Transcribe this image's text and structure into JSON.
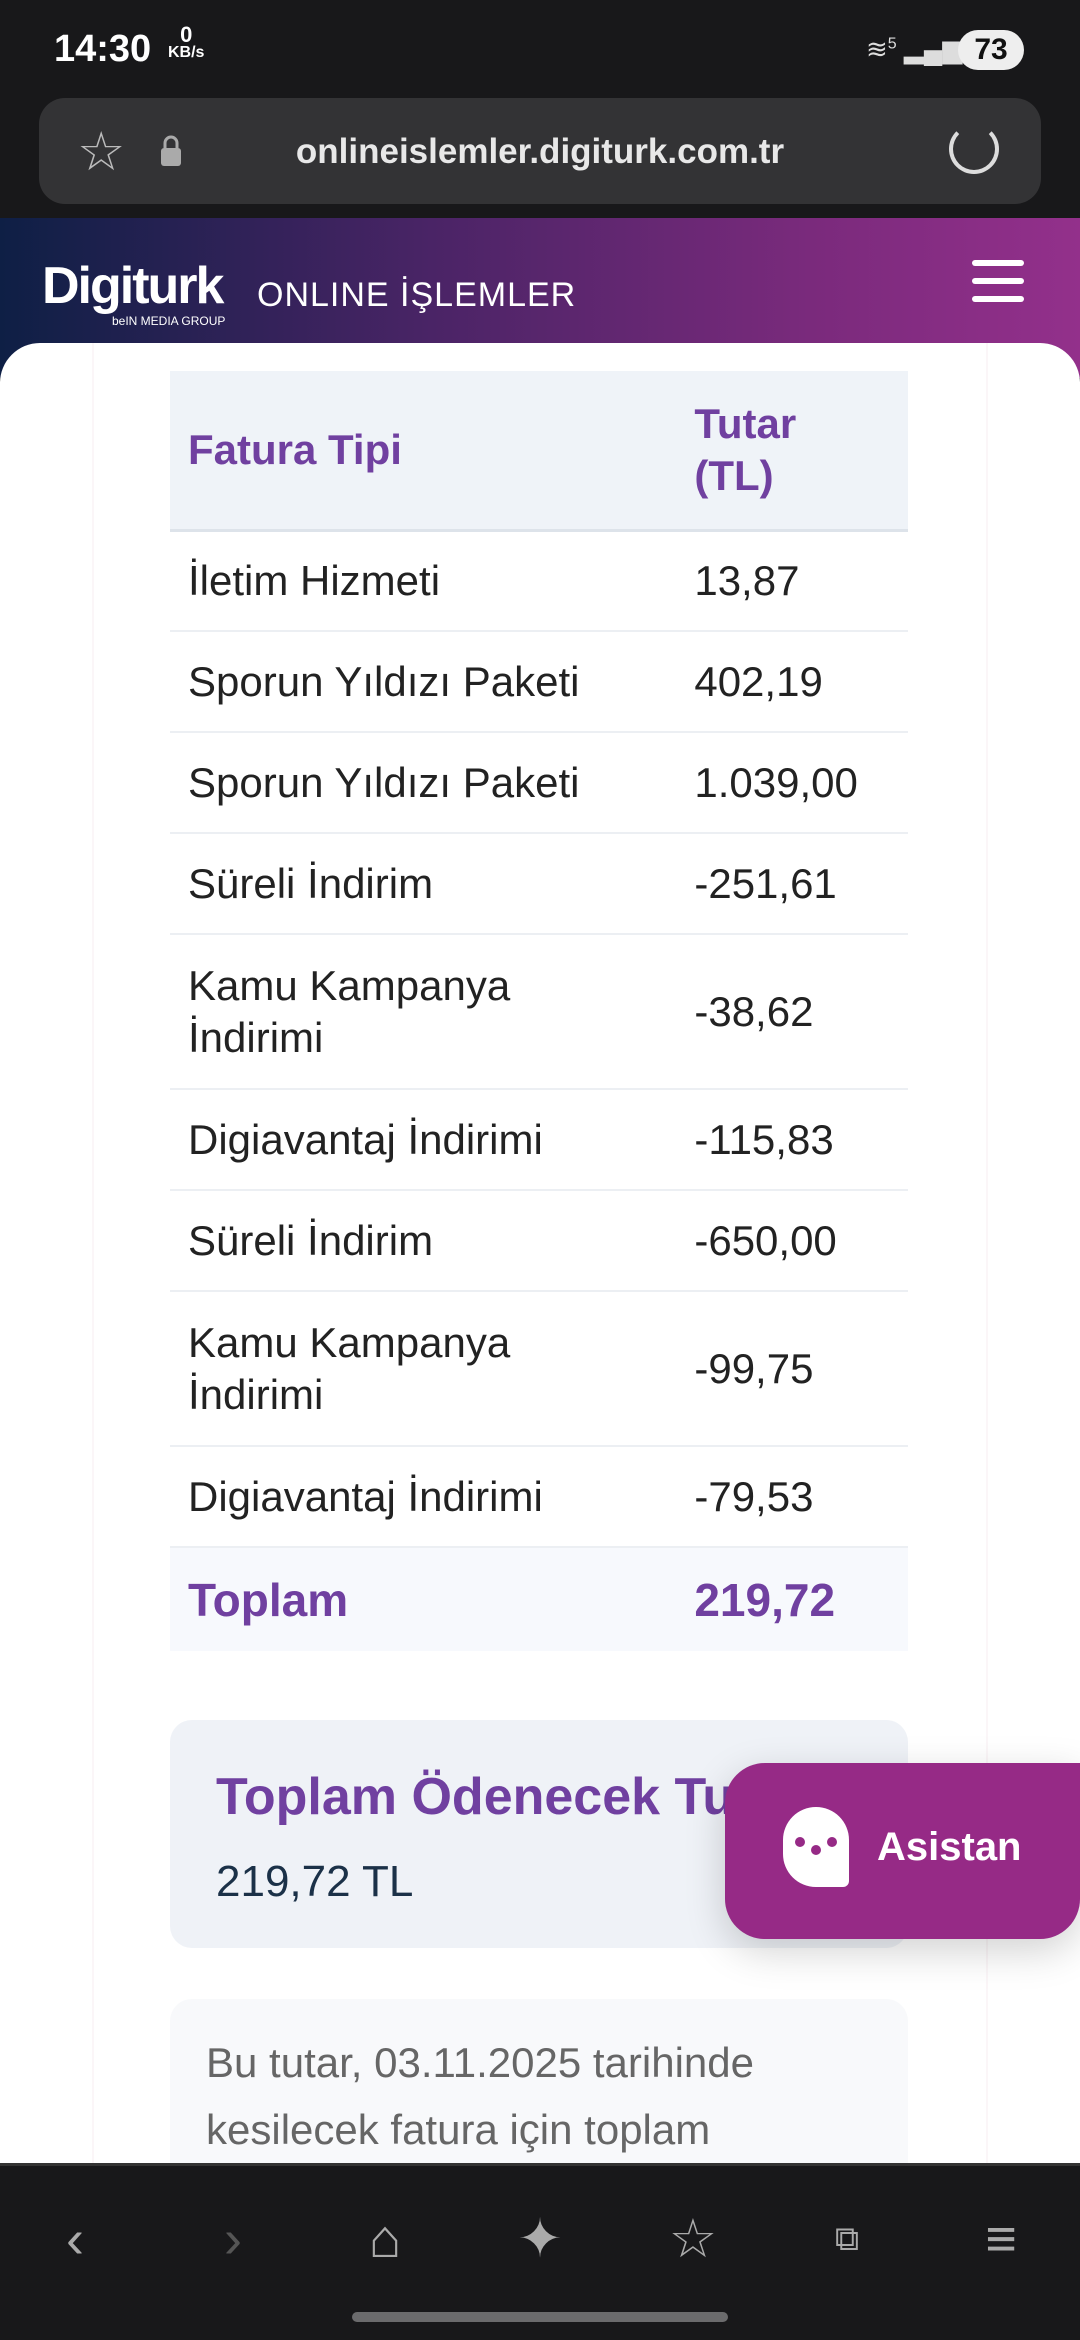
{
  "status_bar": {
    "time": "14:30",
    "net_speed_value": "0",
    "net_speed_unit": "KB/s",
    "network": "5",
    "battery": "73"
  },
  "browser": {
    "url": "onlineislemler.digiturk.com.tr"
  },
  "header": {
    "logo": "Digiturk",
    "logo_sub": "beIN MEDIA GROUP",
    "title": "ONLINE İŞLEMLER"
  },
  "table": {
    "headers": [
      "Fatura Tipi",
      "Tutar (TL)"
    ],
    "rows": [
      {
        "type": "İletim Hizmeti",
        "amount": "13,87"
      },
      {
        "type": "Sporun Yıldızı Paketi",
        "amount": "402,19"
      },
      {
        "type": "Sporun Yıldızı Paketi",
        "amount": "1.039,00"
      },
      {
        "type": "Süreli İndirim",
        "amount": "-251,61"
      },
      {
        "type": "Kamu Kampanya İndirimi",
        "amount": "-38,62"
      },
      {
        "type": "Digiavantaj İndirimi",
        "amount": "-115,83"
      },
      {
        "type": "Süreli İndirim",
        "amount": "-650,00"
      },
      {
        "type": "Kamu Kampanya İndirimi",
        "amount": "-99,75"
      },
      {
        "type": "Digiavantaj İndirimi",
        "amount": "-79,53"
      }
    ],
    "total_label": "Toplam",
    "total_amount": "219,72"
  },
  "summary": {
    "label": "Toplam Ödenecek Tutar:",
    "value": "219,72 TL"
  },
  "note": {
    "text": "Bu tutar, 03.11.2025 tarihinde kesilecek fatura için toplam"
  },
  "assistant": {
    "label": "Asistan"
  },
  "colors": {
    "accent": "#7040a0",
    "assistant_bg": "#962a86"
  }
}
